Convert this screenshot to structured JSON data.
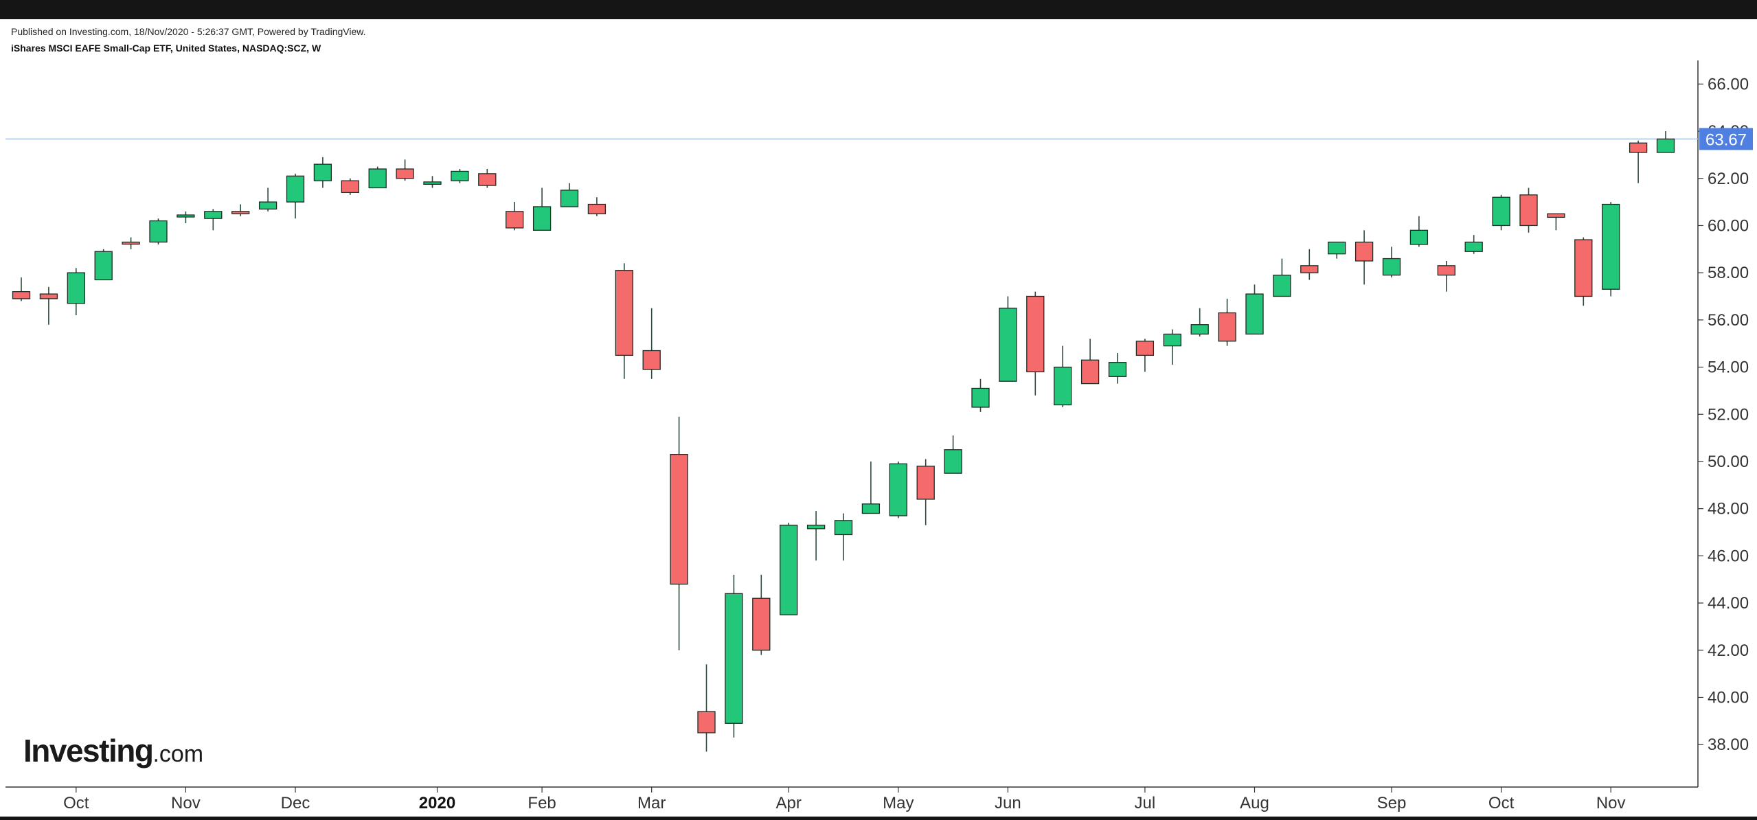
{
  "header": {
    "published": "Published on Investing.com, 18/Nov/2020 - 5:26:37 GMT, Powered by TradingView.",
    "symbol": "iShares MSCI EAFE Small-Cap ETF, United States, NASDAQ:SCZ, W"
  },
  "branding": {
    "logo_main": "Investing",
    "logo_suffix": ".com"
  },
  "colors": {
    "up": "#22c77a",
    "down": "#f56b6b",
    "wick": "#2d4a3a",
    "last_price_line": "#a9c3e6",
    "last_price_badge": "#4f7fe0"
  },
  "chart_data": {
    "type": "candlestick",
    "title": "",
    "xlabel": "",
    "ylabel": "",
    "ylim": [
      36.2,
      67.0
    ],
    "y_ticks": [
      38,
      40,
      42,
      44,
      46,
      48,
      50,
      52,
      54,
      56,
      58,
      60,
      62,
      64,
      66
    ],
    "y_tick_labels": [
      "38.00",
      "40.00",
      "42.00",
      "44.00",
      "46.00",
      "48.00",
      "50.00",
      "52.00",
      "54.00",
      "56.00",
      "58.00",
      "60.00",
      "62.00",
      "64.00",
      "66.00"
    ],
    "last_price": 63.67,
    "last_price_label": "63.67",
    "x_labels": [
      {
        "text": "Oct",
        "index": 2,
        "bold": false
      },
      {
        "text": "Nov",
        "index": 6,
        "bold": false
      },
      {
        "text": "Dec",
        "index": 10,
        "bold": false
      },
      {
        "text": "2020",
        "index": 15,
        "bold": true
      },
      {
        "text": "Feb",
        "index": 19,
        "bold": false
      },
      {
        "text": "Mar",
        "index": 23,
        "bold": false
      },
      {
        "text": "Apr",
        "index": 28,
        "bold": false
      },
      {
        "text": "May",
        "index": 32,
        "bold": false
      },
      {
        "text": "Jun",
        "index": 36,
        "bold": false
      },
      {
        "text": "Jul",
        "index": 41,
        "bold": false
      },
      {
        "text": "Aug",
        "index": 45,
        "bold": false
      },
      {
        "text": "Sep",
        "index": 50,
        "bold": false
      },
      {
        "text": "Oct",
        "index": 54,
        "bold": false
      },
      {
        "text": "Nov",
        "index": 58,
        "bold": false
      }
    ],
    "candles": [
      {
        "o": 57.2,
        "h": 57.8,
        "l": 56.8,
        "c": 56.9
      },
      {
        "o": 57.1,
        "h": 57.4,
        "l": 55.8,
        "c": 56.9
      },
      {
        "o": 56.7,
        "h": 58.2,
        "l": 56.2,
        "c": 58.0
      },
      {
        "o": 57.7,
        "h": 59.0,
        "l": 57.7,
        "c": 58.9
      },
      {
        "o": 59.3,
        "h": 59.5,
        "l": 59.0,
        "c": 59.25
      },
      {
        "o": 59.3,
        "h": 60.3,
        "l": 59.2,
        "c": 60.2
      },
      {
        "o": 60.4,
        "h": 60.6,
        "l": 60.1,
        "c": 60.45
      },
      {
        "o": 60.3,
        "h": 60.7,
        "l": 59.8,
        "c": 60.6
      },
      {
        "o": 60.6,
        "h": 60.9,
        "l": 60.4,
        "c": 60.5
      },
      {
        "o": 60.7,
        "h": 61.6,
        "l": 60.6,
        "c": 61.0
      },
      {
        "o": 61.0,
        "h": 62.2,
        "l": 60.3,
        "c": 62.1
      },
      {
        "o": 61.9,
        "h": 62.9,
        "l": 61.6,
        "c": 62.6
      },
      {
        "o": 61.9,
        "h": 62.0,
        "l": 61.3,
        "c": 61.4
      },
      {
        "o": 61.6,
        "h": 62.5,
        "l": 61.6,
        "c": 62.4
      },
      {
        "o": 62.4,
        "h": 62.8,
        "l": 61.9,
        "c": 62.0
      },
      {
        "o": 61.75,
        "h": 62.1,
        "l": 61.6,
        "c": 61.85
      },
      {
        "o": 61.9,
        "h": 62.4,
        "l": 61.8,
        "c": 62.3
      },
      {
        "o": 62.2,
        "h": 62.4,
        "l": 61.6,
        "c": 61.7
      },
      {
        "o": 60.6,
        "h": 61.0,
        "l": 59.8,
        "c": 59.9
      },
      {
        "o": 59.8,
        "h": 61.6,
        "l": 59.8,
        "c": 60.8
      },
      {
        "o": 60.8,
        "h": 61.8,
        "l": 60.8,
        "c": 61.5
      },
      {
        "o": 60.9,
        "h": 61.2,
        "l": 60.4,
        "c": 60.5
      },
      {
        "o": 58.1,
        "h": 58.4,
        "l": 53.5,
        "c": 54.5
      },
      {
        "o": 54.7,
        "h": 56.5,
        "l": 53.5,
        "c": 53.9
      },
      {
        "o": 50.3,
        "h": 51.9,
        "l": 42.0,
        "c": 44.8
      },
      {
        "o": 39.4,
        "h": 41.4,
        "l": 37.7,
        "c": 38.5
      },
      {
        "o": 38.9,
        "h": 45.2,
        "l": 38.3,
        "c": 44.4
      },
      {
        "o": 44.2,
        "h": 45.2,
        "l": 41.8,
        "c": 42.0
      },
      {
        "o": 43.5,
        "h": 47.4,
        "l": 43.5,
        "c": 47.3
      },
      {
        "o": 47.15,
        "h": 47.9,
        "l": 45.8,
        "c": 47.3
      },
      {
        "o": 46.9,
        "h": 47.8,
        "l": 45.8,
        "c": 47.5
      },
      {
        "o": 47.8,
        "h": 50.0,
        "l": 47.8,
        "c": 48.2
      },
      {
        "o": 47.7,
        "h": 50.0,
        "l": 47.6,
        "c": 49.9
      },
      {
        "o": 49.8,
        "h": 50.1,
        "l": 47.3,
        "c": 48.4
      },
      {
        "o": 49.5,
        "h": 51.1,
        "l": 49.5,
        "c": 50.5
      },
      {
        "o": 52.3,
        "h": 53.5,
        "l": 52.1,
        "c": 53.1
      },
      {
        "o": 53.4,
        "h": 57.0,
        "l": 53.4,
        "c": 56.5
      },
      {
        "o": 57.0,
        "h": 57.2,
        "l": 52.8,
        "c": 53.8
      },
      {
        "o": 52.4,
        "h": 54.9,
        "l": 52.3,
        "c": 54.0
      },
      {
        "o": 54.3,
        "h": 55.2,
        "l": 53.3,
        "c": 53.3
      },
      {
        "o": 53.6,
        "h": 54.6,
        "l": 53.3,
        "c": 54.2
      },
      {
        "o": 55.1,
        "h": 55.2,
        "l": 53.8,
        "c": 54.5
      },
      {
        "o": 54.9,
        "h": 55.6,
        "l": 54.1,
        "c": 55.4
      },
      {
        "o": 55.4,
        "h": 56.5,
        "l": 55.3,
        "c": 55.8
      },
      {
        "o": 56.3,
        "h": 56.9,
        "l": 54.9,
        "c": 55.1
      },
      {
        "o": 55.4,
        "h": 57.5,
        "l": 55.4,
        "c": 57.1
      },
      {
        "o": 57.0,
        "h": 58.6,
        "l": 57.0,
        "c": 57.9
      },
      {
        "o": 58.3,
        "h": 59.0,
        "l": 57.7,
        "c": 58.0
      },
      {
        "o": 58.8,
        "h": 59.3,
        "l": 58.6,
        "c": 59.3
      },
      {
        "o": 59.3,
        "h": 59.8,
        "l": 57.5,
        "c": 58.5
      },
      {
        "o": 57.9,
        "h": 59.1,
        "l": 57.8,
        "c": 58.6
      },
      {
        "o": 59.2,
        "h": 60.4,
        "l": 59.1,
        "c": 59.8
      },
      {
        "o": 58.3,
        "h": 58.5,
        "l": 57.2,
        "c": 57.9
      },
      {
        "o": 58.9,
        "h": 59.6,
        "l": 58.8,
        "c": 59.3
      },
      {
        "o": 60.0,
        "h": 61.3,
        "l": 59.8,
        "c": 61.2
      },
      {
        "o": 61.3,
        "h": 61.6,
        "l": 59.7,
        "c": 60.0
      },
      {
        "o": 60.5,
        "h": 60.5,
        "l": 59.8,
        "c": 60.35
      },
      {
        "o": 59.4,
        "h": 59.5,
        "l": 56.6,
        "c": 57.0
      },
      {
        "o": 57.3,
        "h": 61.0,
        "l": 57.0,
        "c": 60.9
      },
      {
        "o": 63.5,
        "h": 63.6,
        "l": 61.8,
        "c": 63.1
      },
      {
        "o": 63.1,
        "h": 64.0,
        "l": 63.1,
        "c": 63.67
      }
    ]
  }
}
